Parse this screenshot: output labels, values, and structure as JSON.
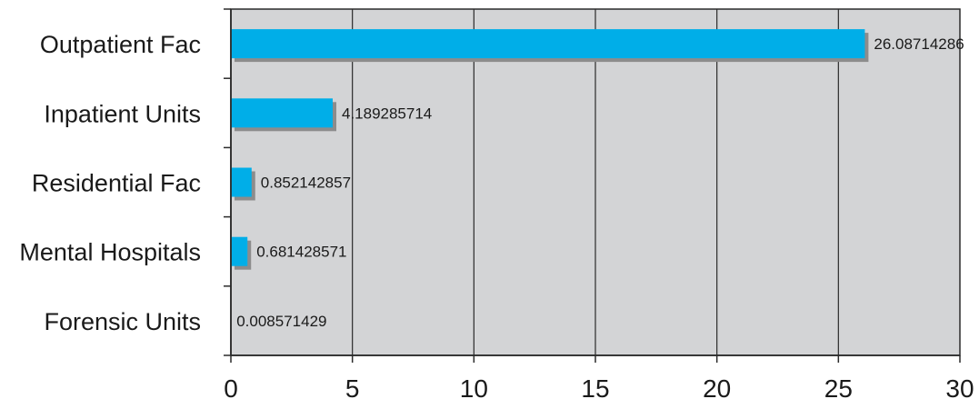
{
  "chart_data": {
    "type": "bar",
    "orientation": "horizontal",
    "title": "",
    "xlabel": "",
    "ylabel": "",
    "categories": [
      "Outpatient Fac",
      "Inpatient Units",
      "Residential Fac",
      "Mental Hospitals",
      "Forensic Units"
    ],
    "values": [
      26.08714286,
      4.189285714,
      0.852142857,
      0.681428571,
      0.008571429
    ],
    "value_labels": [
      "26.08714286",
      "4.189285714",
      "0.852142857",
      "0.681428571",
      "0.008571429"
    ],
    "xlim": [
      0,
      30
    ],
    "x_ticks": [
      0,
      5,
      10,
      15,
      20,
      25,
      30
    ],
    "x_tick_labels": [
      "0",
      "5",
      "10",
      "15",
      "20",
      "25",
      "30"
    ],
    "grid": "vertical",
    "legend": "none",
    "colors": {
      "bar": "#00aee8",
      "bar_shadow": "#8c8c8c",
      "plot_background": "#d3d4d6",
      "gridline": "#2b2b2b",
      "axis": "#2b2b2b"
    }
  }
}
